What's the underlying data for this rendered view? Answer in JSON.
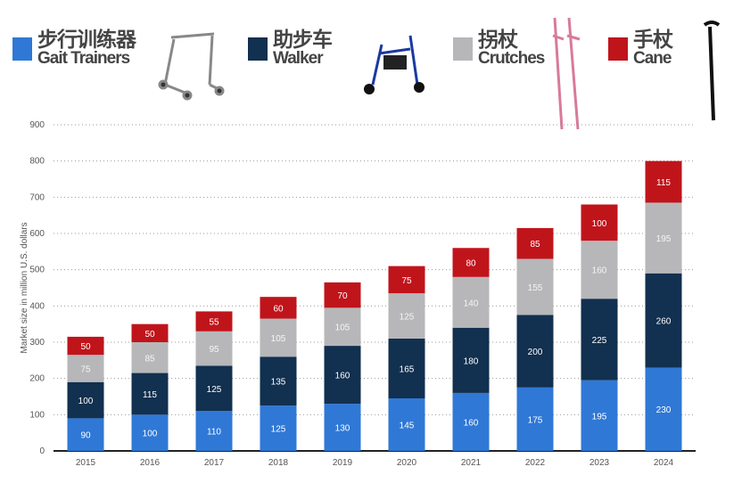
{
  "legend": [
    {
      "cn": "步行训练器",
      "en": "Gait Trainers",
      "color": "#2f78d6",
      "icon": "gait-trainer-image"
    },
    {
      "cn": "助步车",
      "en": "Walker",
      "color": "#12304f",
      "icon": "rollator-walker-image"
    },
    {
      "cn": "拐杖",
      "en": "Crutches",
      "color": "#b7b7b9",
      "icon": "crutches-image"
    },
    {
      "cn": "手杖",
      "en": "Cane",
      "color": "#c0141b",
      "icon": "cane-image"
    }
  ],
  "chart_data": {
    "type": "bar",
    "stacked": true,
    "categories": [
      "2015",
      "2016",
      "2017",
      "2018",
      "2019",
      "2020",
      "2021",
      "2022",
      "2023",
      "2024"
    ],
    "series": [
      {
        "name": "Gait Trainers",
        "color": "#2f78d6",
        "values": [
          90,
          100,
          110,
          125,
          130,
          145,
          160,
          175,
          195,
          230
        ]
      },
      {
        "name": "Walker",
        "color": "#12304f",
        "values": [
          100,
          115,
          125,
          135,
          160,
          165,
          180,
          200,
          225,
          260
        ]
      },
      {
        "name": "Crutches",
        "color": "#b7b7b9",
        "values": [
          75,
          85,
          95,
          105,
          105,
          125,
          140,
          155,
          160,
          195
        ]
      },
      {
        "name": "Cane",
        "color": "#c0141b",
        "values": [
          50,
          50,
          55,
          60,
          70,
          75,
          80,
          85,
          100,
          115
        ]
      }
    ],
    "ylabel": "Market size in million U.S. dollars",
    "xlabel": "",
    "ylim": [
      0,
      900
    ],
    "yticks": [
      0,
      100,
      200,
      300,
      400,
      500,
      600,
      700,
      800,
      900
    ],
    "grid": true,
    "data_labels": true,
    "legend_position": "top"
  }
}
